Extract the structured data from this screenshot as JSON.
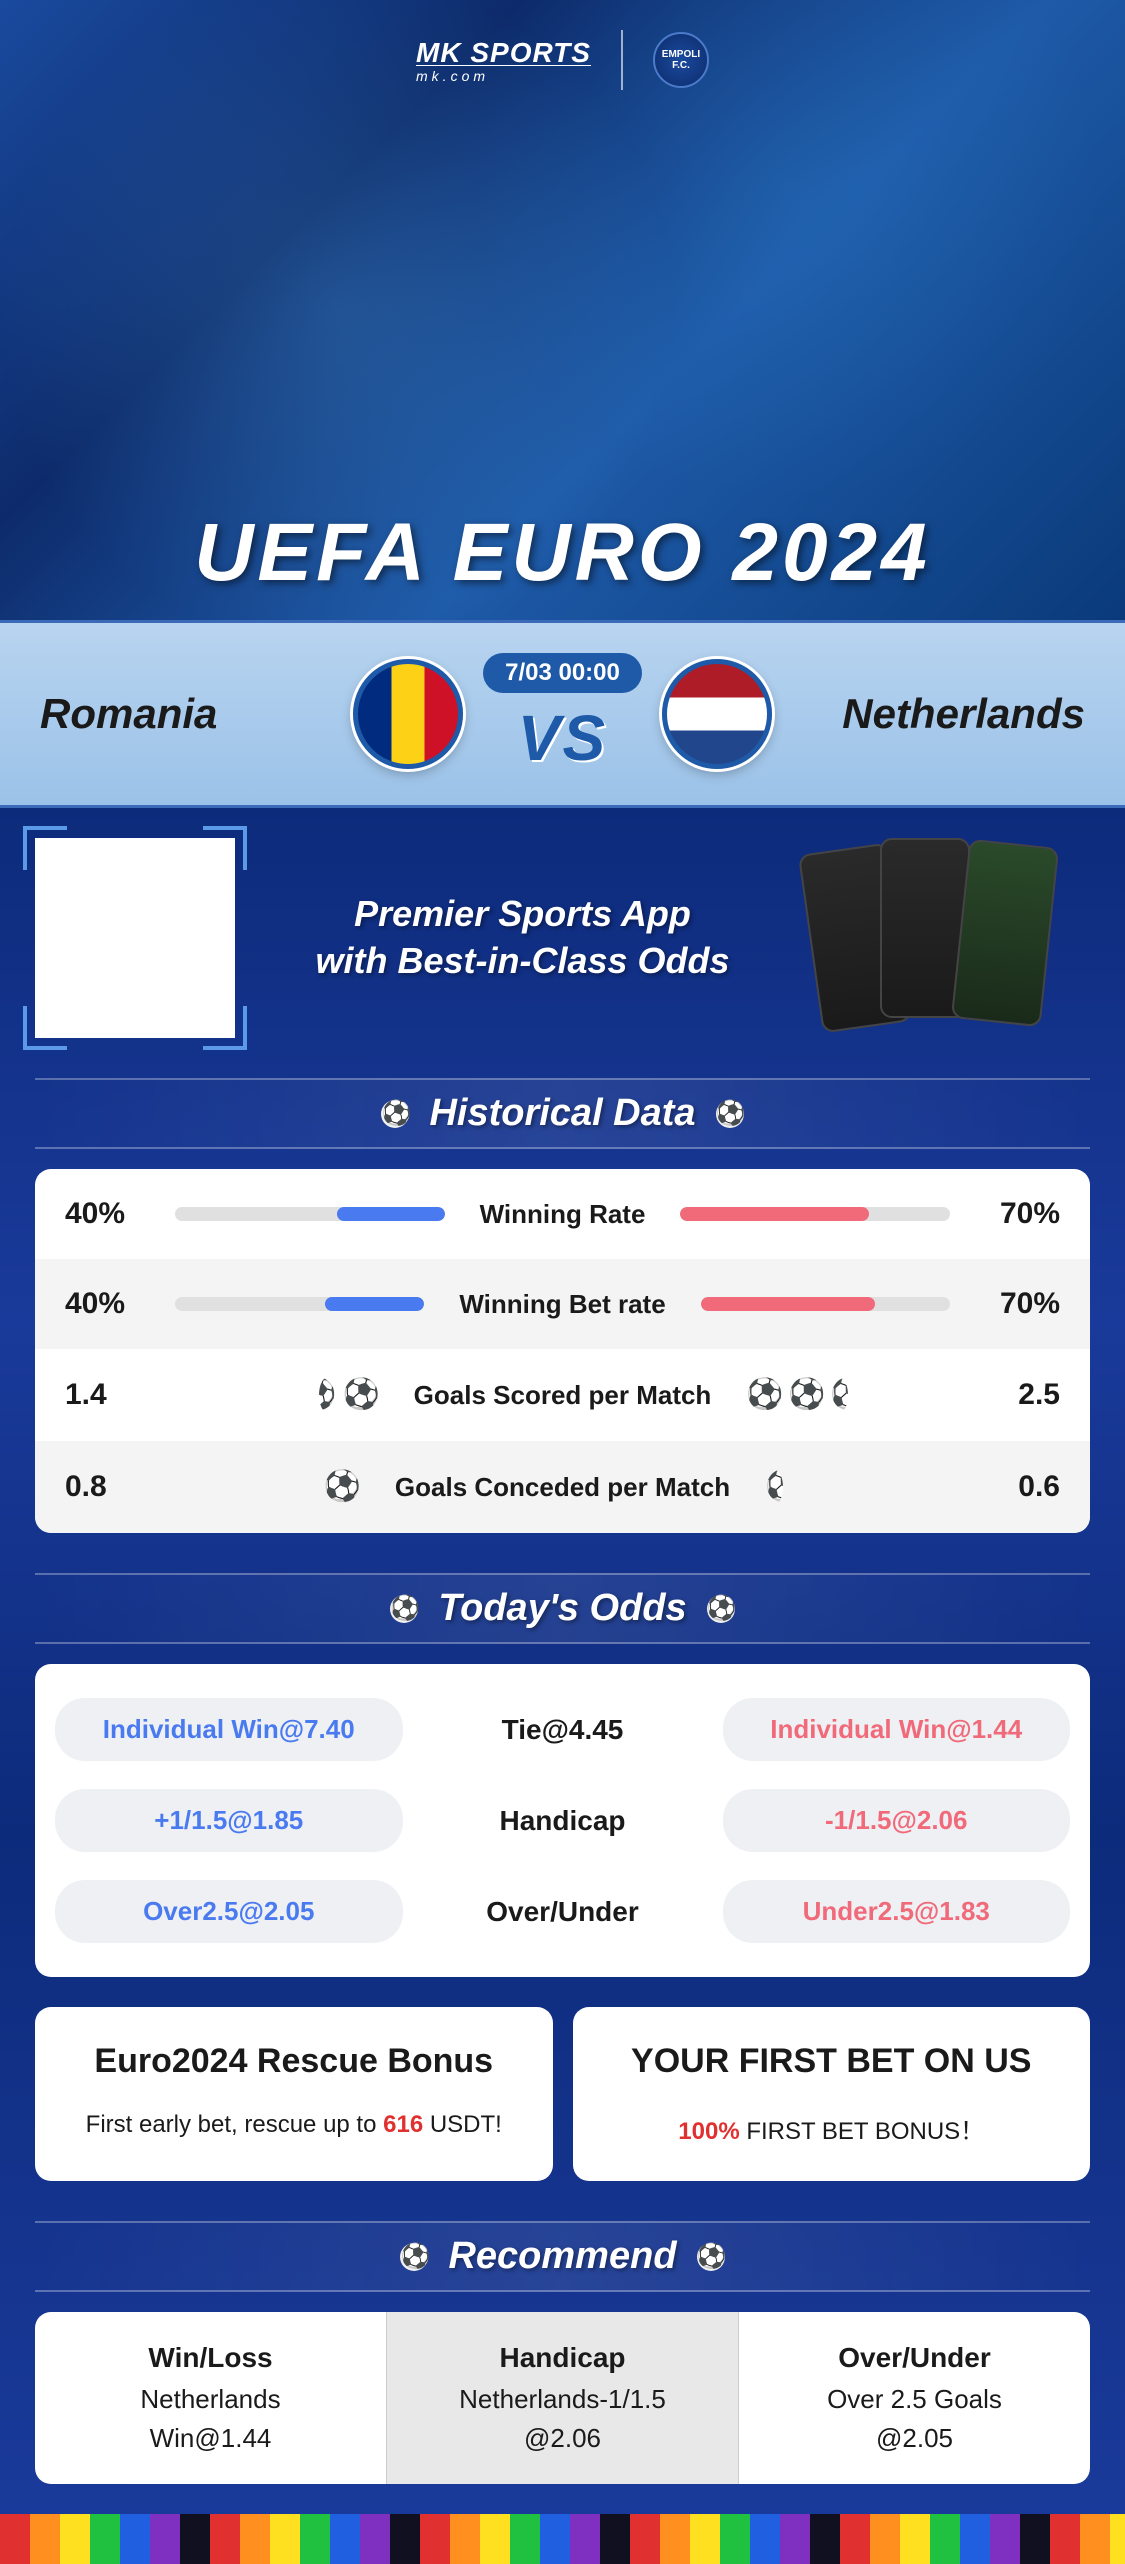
{
  "brand": {
    "name": "MK SPORTS",
    "site": "mk.com",
    "partner": "EMPOLI F.C."
  },
  "hero_title": "UEFA EURO 2024",
  "match": {
    "team1": "Romania",
    "team2": "Netherlands",
    "time": "7/03 00:00",
    "vs": "VS"
  },
  "promo": {
    "line1": "Premier Sports App",
    "line2": "with Best-in-Class Odds"
  },
  "sections": {
    "historical": "Historical Data",
    "odds": "Today's Odds",
    "recommend": "Recommend"
  },
  "historical": {
    "rows": [
      {
        "label": "Winning Rate",
        "left_val": "40%",
        "right_val": "70%",
        "left_pct": 40,
        "right_pct": 70,
        "type": "bar"
      },
      {
        "label": "Winning Bet rate",
        "left_val": "40%",
        "right_val": "70%",
        "left_pct": 40,
        "right_pct": 70,
        "type": "bar"
      },
      {
        "label": "Goals Scored per Match",
        "left_val": "1.4",
        "right_val": "2.5",
        "left_balls": 1.5,
        "right_balls": 2.5,
        "type": "balls"
      },
      {
        "label": "Goals Conceded per Match",
        "left_val": "0.8",
        "right_val": "0.6",
        "left_balls": 1,
        "right_balls": 0.5,
        "type": "balls"
      }
    ],
    "colors": {
      "left": "#4a7af0",
      "right": "#f06a7a",
      "track": "#e0e0e0"
    }
  },
  "odds": {
    "rows": [
      {
        "left": "Individual Win@7.40",
        "center": "Tie@4.45",
        "right": "Individual Win@1.44"
      },
      {
        "left": "+1/1.5@1.85",
        "center": "Handicap",
        "right": "-1/1.5@2.06"
      },
      {
        "left": "Over2.5@2.05",
        "center": "Over/Under",
        "right": "Under2.5@1.83"
      }
    ]
  },
  "bonuses": [
    {
      "title": "Euro2024 Rescue Bonus",
      "sub_pre": "First early bet, rescue up to ",
      "sub_hl": "616",
      "sub_post": " USDT!"
    },
    {
      "title": "YOUR FIRST BET ON US",
      "sub_pre": "",
      "sub_hl": "100%",
      "sub_post": " FIRST BET BONUS！"
    }
  ],
  "recommend": [
    {
      "cat": "Win/Loss",
      "pick": "Netherlands",
      "odd": "Win@1.44"
    },
    {
      "cat": "Handicap",
      "pick": "Netherlands-1/1.5",
      "odd": "@2.06"
    },
    {
      "cat": "Over/Under",
      "pick": "Over 2.5 Goals",
      "odd": "@2.05"
    }
  ]
}
